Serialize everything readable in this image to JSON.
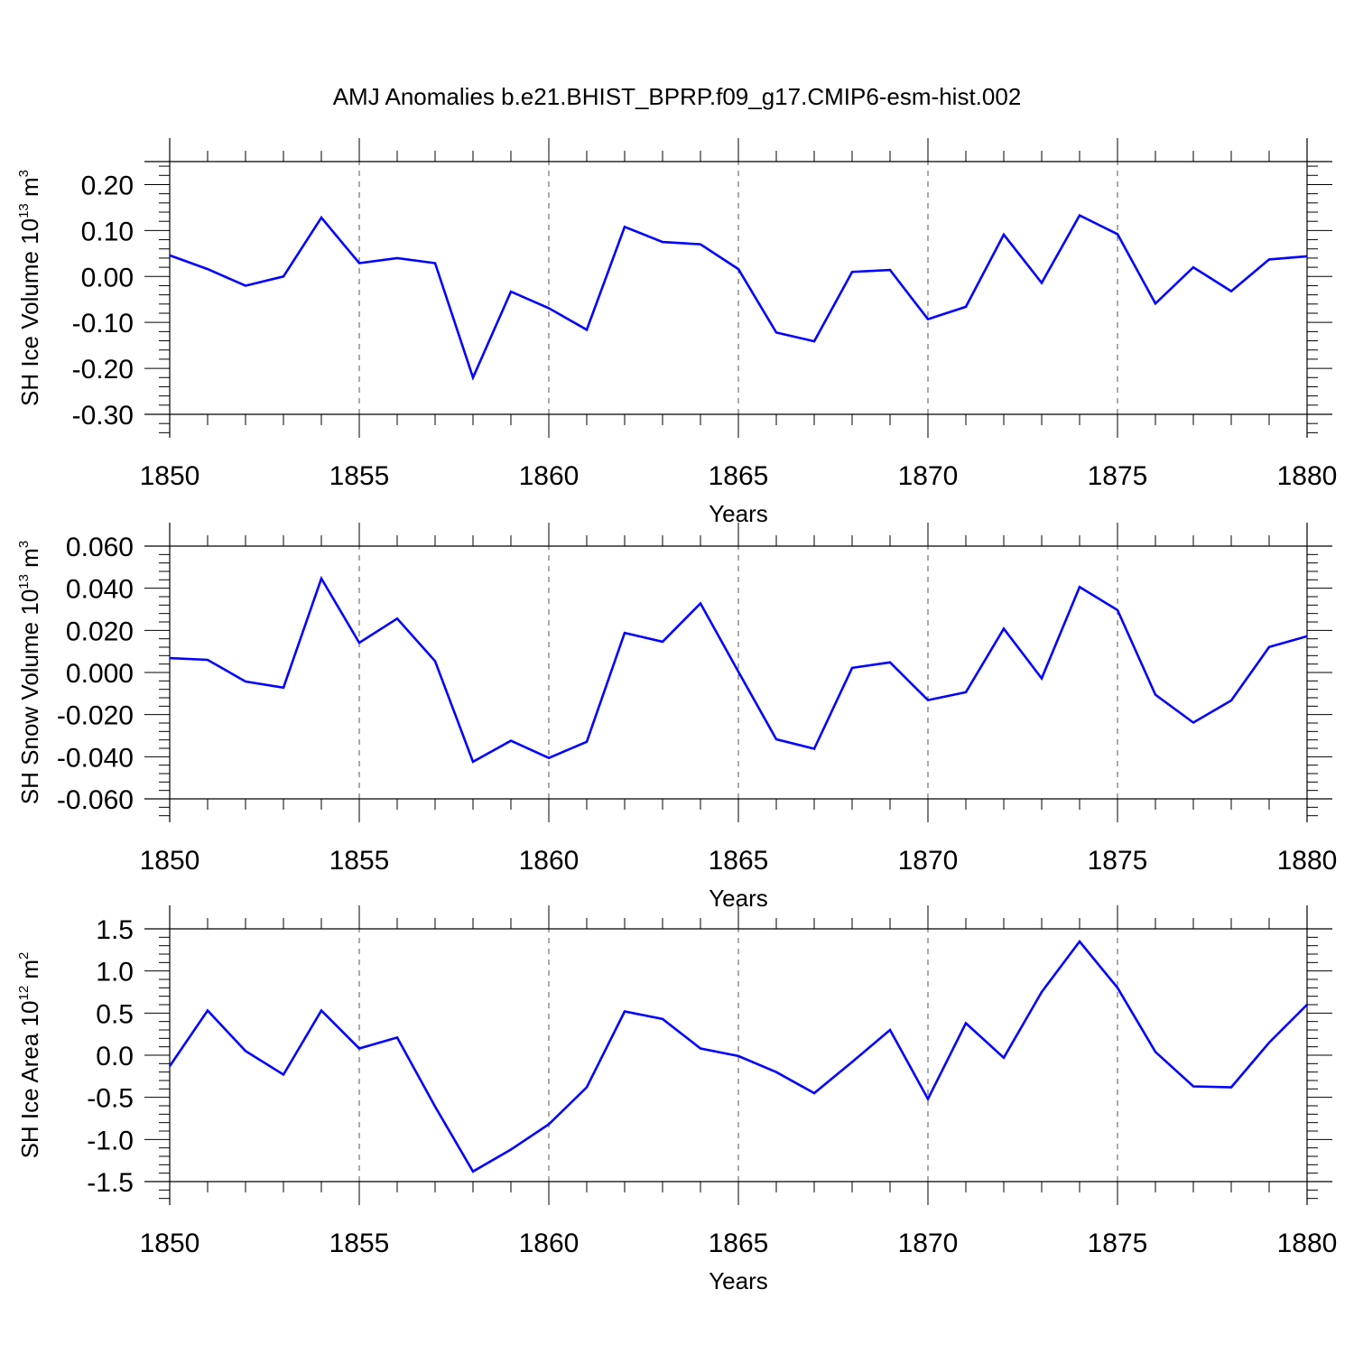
{
  "figure_title": "AMJ Anomalies b.e21.BHIST_BPRP.f09_g17.CMIP6-esm-hist.002",
  "chart_data": [
    {
      "type": "line",
      "title": "",
      "xlabel": "Years",
      "ylabel_text": "SH Ice Volume 10",
      "ylabel_exp": "13",
      "ylabel_unit": " m",
      "ylabel_unit_exp": "3",
      "xlim": [
        1850,
        1880
      ],
      "ylim": [
        -0.3,
        0.25
      ],
      "yticks": [
        -0.3,
        -0.2,
        -0.1,
        0.0,
        0.1,
        0.2
      ],
      "ytick_labels": [
        "-0.30",
        "-0.20",
        "-0.10",
        "0.00",
        "0.10",
        "0.20"
      ],
      "xticks": [
        1850,
        1855,
        1860,
        1865,
        1870,
        1875,
        1880
      ],
      "xtick_labels": [
        "1850",
        "1855",
        "1860",
        "1865",
        "1870",
        "1875",
        "1880"
      ],
      "grid": "vertical dashed at major x ticks",
      "line_color": "#0000ff",
      "x": [
        1850,
        1851,
        1852,
        1853,
        1854,
        1855,
        1856,
        1857,
        1858,
        1859,
        1860,
        1861,
        1862,
        1863,
        1864,
        1865,
        1866,
        1867,
        1868,
        1869,
        1870,
        1871,
        1872,
        1873,
        1874,
        1875,
        1876,
        1877,
        1878,
        1879,
        1880
      ],
      "y": [
        0.046,
        0.016,
        -0.02,
        0.0,
        0.128,
        0.029,
        0.04,
        0.029,
        -0.22,
        -0.033,
        -0.069,
        -0.116,
        0.108,
        0.075,
        0.07,
        0.016,
        -0.122,
        -0.141,
        0.01,
        0.014,
        -0.093,
        -0.066,
        0.091,
        -0.014,
        0.133,
        0.092,
        -0.059,
        0.02,
        -0.032,
        0.037,
        0.044
      ]
    },
    {
      "type": "line",
      "title": "",
      "xlabel": "Years",
      "ylabel_text": "SH Snow Volume 10",
      "ylabel_exp": "13",
      "ylabel_unit": " m",
      "ylabel_unit_exp": "3",
      "xlim": [
        1850,
        1880
      ],
      "ylim": [
        -0.06,
        0.06
      ],
      "yticks": [
        -0.06,
        -0.04,
        -0.02,
        0.0,
        0.02,
        0.04,
        0.06
      ],
      "ytick_labels": [
        "-0.060",
        "-0.040",
        "-0.020",
        "0.000",
        "0.020",
        "0.040",
        "0.060"
      ],
      "xticks": [
        1850,
        1855,
        1860,
        1865,
        1870,
        1875,
        1880
      ],
      "xtick_labels": [
        "1850",
        "1855",
        "1860",
        "1865",
        "1870",
        "1875",
        "1880"
      ],
      "grid": "vertical dashed at major x ticks",
      "line_color": "#0000ff",
      "x": [
        1850,
        1851,
        1852,
        1853,
        1854,
        1855,
        1856,
        1857,
        1858,
        1859,
        1860,
        1861,
        1862,
        1863,
        1864,
        1865,
        1866,
        1867,
        1868,
        1869,
        1870,
        1871,
        1872,
        1873,
        1874,
        1875,
        1876,
        1877,
        1878,
        1879,
        1880
      ],
      "y": [
        0.0068,
        0.006,
        -0.0043,
        -0.0072,
        0.0446,
        0.0141,
        0.0256,
        0.0054,
        -0.0424,
        -0.0324,
        -0.0406,
        -0.0329,
        0.0188,
        0.0146,
        0.0328,
        0.0004,
        -0.0317,
        -0.0362,
        0.0022,
        0.0048,
        -0.0131,
        -0.0094,
        0.0208,
        -0.0028,
        0.0406,
        0.0296,
        -0.0106,
        -0.0238,
        -0.0133,
        0.0121,
        0.0172
      ]
    },
    {
      "type": "line",
      "title": "",
      "xlabel": "Years",
      "ylabel_text": "SH Ice Area 10",
      "ylabel_exp": "12",
      "ylabel_unit": " m",
      "ylabel_unit_exp": "2",
      "xlim": [
        1850,
        1880
      ],
      "ylim": [
        -1.5,
        1.5
      ],
      "yticks": [
        -1.5,
        -1.0,
        -0.5,
        0.0,
        0.5,
        1.0,
        1.5
      ],
      "ytick_labels": [
        "-1.5",
        "-1.0",
        "-0.5",
        "0.0",
        "0.5",
        "1.0",
        "1.5"
      ],
      "xticks": [
        1850,
        1855,
        1860,
        1865,
        1870,
        1875,
        1880
      ],
      "xtick_labels": [
        "1850",
        "1855",
        "1860",
        "1865",
        "1870",
        "1875",
        "1880"
      ],
      "grid": "vertical dashed at major x ticks",
      "line_color": "#0000ff",
      "x": [
        1850,
        1851,
        1852,
        1853,
        1854,
        1855,
        1856,
        1857,
        1858,
        1859,
        1860,
        1861,
        1862,
        1863,
        1864,
        1865,
        1866,
        1867,
        1868,
        1869,
        1870,
        1871,
        1872,
        1873,
        1874,
        1875,
        1876,
        1877,
        1878,
        1879,
        1880
      ],
      "y": [
        -0.13,
        0.53,
        0.05,
        -0.23,
        0.53,
        0.08,
        0.21,
        -0.61,
        -1.38,
        -1.12,
        -0.82,
        -0.38,
        0.52,
        0.43,
        0.08,
        -0.01,
        -0.2,
        -0.45,
        -0.08,
        0.3,
        -0.52,
        0.38,
        -0.03,
        0.75,
        1.35,
        0.8,
        0.04,
        -0.37,
        -0.38,
        0.15,
        0.6
      ]
    }
  ]
}
